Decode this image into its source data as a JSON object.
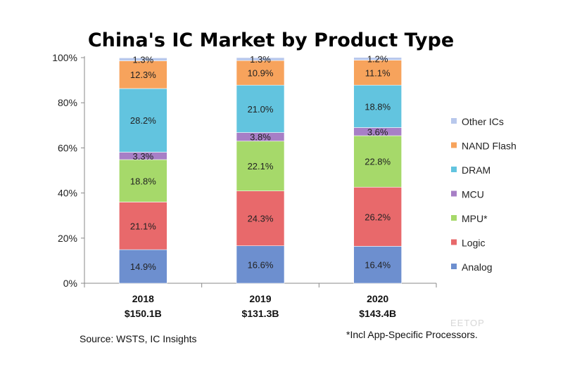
{
  "chart_data": {
    "type": "bar",
    "stacked": true,
    "title": "China's IC Market by Product Type",
    "categories": [
      "2018",
      "2019",
      "2020"
    ],
    "category_totals": [
      "$150.1B",
      "$131.3B",
      "$143.4B"
    ],
    "y_tick_labels": [
      "0%",
      "20%",
      "40%",
      "60%",
      "80%",
      "100%"
    ],
    "ylim": [
      0,
      100
    ],
    "grid": false,
    "legend_position": "right",
    "series": [
      {
        "name": "Analog",
        "values": [
          14.9,
          16.6,
          16.4
        ],
        "labels": [
          "14.9%",
          "16.6%",
          "16.4%"
        ],
        "color": "#6d8fcf"
      },
      {
        "name": "Logic",
        "values": [
          21.1,
          24.3,
          26.2
        ],
        "labels": [
          "21.1%",
          "24.3%",
          "26.2%"
        ],
        "color": "#e8696b"
      },
      {
        "name": "MPU*",
        "values": [
          18.8,
          22.1,
          22.8
        ],
        "labels": [
          "18.8%",
          "22.1%",
          "22.8%"
        ],
        "color": "#a6d96a"
      },
      {
        "name": "MCU",
        "values": [
          3.3,
          3.8,
          3.6
        ],
        "labels": [
          "3.3%",
          "3.8%",
          "3.6%"
        ],
        "color": "#a77fc6"
      },
      {
        "name": "DRAM",
        "values": [
          28.2,
          21.0,
          18.8
        ],
        "labels": [
          "28.2%",
          "21.0%",
          "18.8%"
        ],
        "color": "#62c4df"
      },
      {
        "name": "NAND Flash",
        "values": [
          12.3,
          10.9,
          11.1
        ],
        "labels": [
          "12.3%",
          "10.9%",
          "11.1%"
        ],
        "color": "#f7a35c"
      },
      {
        "name": "Other ICs",
        "values": [
          1.3,
          1.3,
          1.2
        ],
        "labels": [
          "1.3%",
          "1.3%",
          "1.2%"
        ],
        "color": "#b8c8ec"
      }
    ],
    "source": "Source:  WSTS, IC Insights",
    "footnote": "*Incl App-Specific Processors.",
    "watermark": "EETOP"
  }
}
